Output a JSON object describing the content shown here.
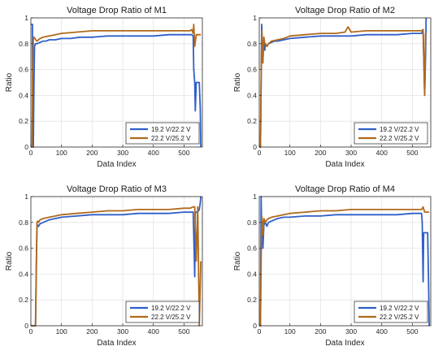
{
  "series_colors": [
    "#2f5fc8",
    "#b06a1c"
  ],
  "secondary_colors": [
    "#e04f20",
    "#c23b3b"
  ],
  "chart_data": [
    {
      "type": "line",
      "title": "Voltage Drop Ratio of M1",
      "xlabel": "Data Index",
      "ylabel": "Ratio",
      "xlim": [
        0,
        560
      ],
      "ylim": [
        0,
        1
      ],
      "xticks": [
        0,
        100,
        200,
        300,
        400,
        500
      ],
      "yticks": [
        0,
        0.2,
        0.4,
        0.6,
        0.8,
        1
      ],
      "grid": true,
      "legend": "bottom-right",
      "series": [
        {
          "name": "19.2 V/22.2 V",
          "x": [
            0,
            5,
            6,
            8,
            10,
            12,
            15,
            20,
            30,
            40,
            50,
            60,
            80,
            100,
            130,
            160,
            200,
            250,
            300,
            350,
            400,
            450,
            500,
            515,
            525,
            530,
            532,
            535,
            537,
            540,
            545,
            550,
            553,
            555
          ],
          "y": [
            0.95,
            0.95,
            0.02,
            0.0,
            0.5,
            0.78,
            0.8,
            0.8,
            0.81,
            0.82,
            0.82,
            0.83,
            0.83,
            0.84,
            0.84,
            0.85,
            0.85,
            0.86,
            0.86,
            0.86,
            0.86,
            0.87,
            0.87,
            0.87,
            0.87,
            0.86,
            0.6,
            0.5,
            0.28,
            0.5,
            0.5,
            0.5,
            0.3,
            0.0
          ]
        },
        {
          "name": "22.2 V/25.2 V",
          "x": [
            0,
            4,
            6,
            8,
            10,
            13,
            16,
            20,
            30,
            40,
            60,
            80,
            100,
            150,
            200,
            220,
            250,
            300,
            350,
            400,
            450,
            500,
            520,
            525,
            530,
            532,
            535,
            540,
            545,
            550,
            555
          ],
          "y": [
            0.0,
            0.0,
            0.6,
            0.84,
            0.85,
            0.84,
            0.83,
            0.82,
            0.84,
            0.85,
            0.86,
            0.87,
            0.88,
            0.89,
            0.9,
            0.9,
            0.9,
            0.9,
            0.9,
            0.9,
            0.9,
            0.9,
            0.9,
            0.91,
            0.88,
            0.95,
            0.78,
            0.87,
            0.87,
            0.87,
            0.87
          ]
        }
      ]
    },
    {
      "type": "line",
      "title": "Voltage Drop Ratio of M2",
      "xlabel": "Data Index",
      "ylabel": "Ratio",
      "xlim": [
        0,
        560
      ],
      "ylim": [
        0,
        1
      ],
      "xticks": [
        0,
        100,
        200,
        300,
        400,
        500
      ],
      "yticks": [
        0,
        0.2,
        0.4,
        0.6,
        0.8,
        1
      ],
      "grid": true,
      "legend": "bottom-right",
      "series": [
        {
          "name": "19.2 V/22.2 V",
          "x": [
            0,
            4,
            6,
            8,
            10,
            12,
            15,
            18,
            20,
            25,
            30,
            40,
            50,
            60,
            80,
            100,
            150,
            200,
            250,
            300,
            350,
            400,
            450,
            500,
            520,
            530,
            535,
            540,
            543,
            545
          ],
          "y": [
            0.0,
            0.0,
            0.5,
            0.95,
            0.8,
            0.72,
            0.82,
            0.75,
            0.8,
            0.78,
            0.8,
            0.81,
            0.82,
            0.82,
            0.83,
            0.84,
            0.85,
            0.86,
            0.86,
            0.86,
            0.87,
            0.87,
            0.87,
            0.88,
            0.88,
            0.88,
            0.9,
            0.4,
            0.7,
            1.0
          ]
        },
        {
          "name": "22.2 V/25.2 V",
          "x": [
            0,
            4,
            6,
            8,
            10,
            12,
            15,
            18,
            20,
            25,
            30,
            40,
            60,
            80,
            100,
            150,
            200,
            250,
            280,
            290,
            300,
            350,
            400,
            450,
            500,
            520,
            530,
            535,
            540,
            543,
            547
          ],
          "y": [
            0.0,
            0.0,
            0.5,
            0.9,
            0.75,
            0.65,
            0.85,
            0.8,
            0.8,
            0.78,
            0.8,
            0.82,
            0.83,
            0.84,
            0.86,
            0.87,
            0.88,
            0.88,
            0.89,
            0.93,
            0.89,
            0.9,
            0.9,
            0.9,
            0.9,
            0.9,
            0.9,
            0.91,
            0.4,
            0.88,
            0.88
          ]
        }
      ]
    },
    {
      "type": "line",
      "title": "Voltage Drop Ratio of M3",
      "xlabel": "Data Index",
      "ylabel": "Ratio",
      "xlim": [
        0,
        560
      ],
      "ylim": [
        0,
        1
      ],
      "xticks": [
        0,
        100,
        200,
        300,
        400,
        500
      ],
      "yticks": [
        0,
        0.2,
        0.4,
        0.6,
        0.8,
        1
      ],
      "grid": true,
      "legend": "bottom-right",
      "series": [
        {
          "name": "19.2 V/22.2 V",
          "x": [
            0,
            15,
            18,
            20,
            22,
            25,
            30,
            40,
            50,
            60,
            80,
            100,
            150,
            200,
            250,
            300,
            350,
            400,
            450,
            500,
            520,
            530,
            533,
            535,
            537,
            540,
            545,
            550,
            553,
            555
          ],
          "y": [
            0.0,
            0.0,
            0.5,
            0.76,
            0.78,
            0.77,
            0.79,
            0.8,
            0.81,
            0.82,
            0.83,
            0.84,
            0.85,
            0.86,
            0.86,
            0.86,
            0.87,
            0.87,
            0.87,
            0.88,
            0.88,
            0.88,
            0.6,
            0.38,
            0.88,
            0.88,
            0.88,
            0.9,
            0.95,
            1.0
          ]
        },
        {
          "name": "22.2 V/25.2 V",
          "x": [
            0,
            15,
            18,
            20,
            22,
            25,
            30,
            40,
            60,
            80,
            100,
            150,
            200,
            250,
            300,
            350,
            400,
            450,
            500,
            520,
            530,
            535,
            540,
            545,
            550,
            555
          ],
          "y": [
            0.0,
            0.0,
            0.5,
            0.8,
            0.81,
            0.8,
            0.82,
            0.83,
            0.84,
            0.85,
            0.86,
            0.87,
            0.88,
            0.89,
            0.89,
            0.9,
            0.9,
            0.9,
            0.91,
            0.91,
            0.92,
            0.92,
            0.5,
            0.92,
            0.0,
            0.5
          ]
        }
      ]
    },
    {
      "type": "line",
      "title": "Voltage Drop Ratio of M4",
      "xlabel": "Data Index",
      "ylabel": "Ratio",
      "xlim": [
        0,
        560
      ],
      "ylim": [
        0,
        1
      ],
      "xticks": [
        0,
        100,
        200,
        300,
        400,
        500
      ],
      "yticks": [
        0,
        0.2,
        0.4,
        0.6,
        0.8,
        1
      ],
      "grid": true,
      "legend": "bottom-right",
      "series": [
        {
          "name": "19.2 V/22.2 V",
          "x": [
            0,
            4,
            6,
            8,
            10,
            12,
            15,
            20,
            25,
            30,
            40,
            50,
            60,
            80,
            100,
            150,
            200,
            250,
            300,
            350,
            400,
            450,
            500,
            520,
            530,
            532,
            535,
            537,
            540,
            545,
            550,
            553,
            555
          ],
          "y": [
            0.0,
            0.0,
            1.0,
            0.7,
            0.75,
            0.6,
            0.78,
            0.8,
            0.77,
            0.8,
            0.81,
            0.82,
            0.83,
            0.84,
            0.84,
            0.85,
            0.85,
            0.86,
            0.86,
            0.86,
            0.86,
            0.86,
            0.87,
            0.87,
            0.87,
            0.8,
            0.34,
            0.72,
            0.72,
            0.72,
            0.72,
            0.3,
            0.0
          ]
        },
        {
          "name": "22.2 V/25.2 V",
          "x": [
            0,
            4,
            6,
            8,
            10,
            12,
            15,
            20,
            25,
            30,
            40,
            60,
            80,
            100,
            150,
            200,
            250,
            300,
            350,
            400,
            450,
            500,
            520,
            530,
            535,
            540,
            545,
            550,
            555
          ],
          "y": [
            0.0,
            0.0,
            0.5,
            0.85,
            0.8,
            0.7,
            0.83,
            0.8,
            0.82,
            0.83,
            0.84,
            0.85,
            0.86,
            0.87,
            0.88,
            0.89,
            0.89,
            0.9,
            0.9,
            0.9,
            0.9,
            0.9,
            0.9,
            0.9,
            0.92,
            0.88,
            0.88,
            0.88,
            0.88
          ]
        }
      ]
    }
  ]
}
